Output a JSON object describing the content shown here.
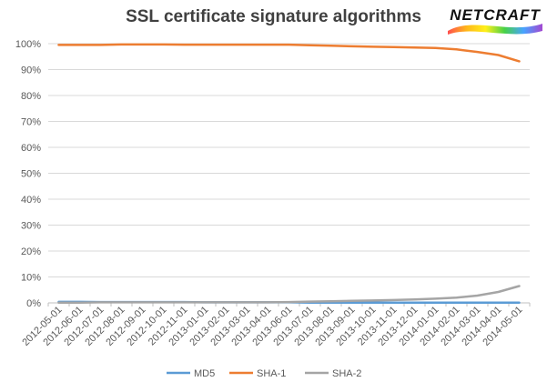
{
  "logo": {
    "text": "NETCRAFT"
  },
  "chart_data": {
    "type": "line",
    "title": "SSL certificate signature algorithms",
    "xlabel": "",
    "ylabel": "",
    "ylim": [
      0,
      100
    ],
    "y_ticks": [
      "0%",
      "10%",
      "20%",
      "30%",
      "40%",
      "50%",
      "60%",
      "70%",
      "80%",
      "90%",
      "100%"
    ],
    "grid": true,
    "legend_position": "bottom",
    "categories": [
      "2012-05-01",
      "2012-06-01",
      "2012-07-01",
      "2012-08-01",
      "2012-09-01",
      "2012-10-01",
      "2012-11-01",
      "2013-01-01",
      "2013-02-01",
      "2013-03-01",
      "2013-04-01",
      "2013-06-01",
      "2013-07-01",
      "2013-08-01",
      "2013-09-01",
      "2013-10-01",
      "2013-11-01",
      "2013-12-01",
      "2014-01-01",
      "2014-02-01",
      "2014-03-01",
      "2014-04-01",
      "2014-05-01"
    ],
    "series": [
      {
        "name": "MD5",
        "color": "#5b9bd5",
        "values": [
          0.4,
          0.4,
          0.3,
          0.3,
          0.3,
          0.3,
          0.3,
          0.2,
          0.2,
          0.2,
          0.2,
          0.2,
          0.1,
          0.1,
          0.1,
          0.1,
          0.1,
          0.1,
          0.1,
          0.1,
          0.1,
          0.1,
          0.1
        ]
      },
      {
        "name": "SHA-1",
        "color": "#ed7d31",
        "values": [
          99.5,
          99.5,
          99.5,
          99.7,
          99.7,
          99.7,
          99.6,
          99.6,
          99.6,
          99.6,
          99.6,
          99.6,
          99.4,
          99.2,
          99.0,
          98.8,
          98.7,
          98.5,
          98.3,
          97.8,
          96.8,
          95.6,
          93.2
        ]
      },
      {
        "name": "SHA-2",
        "color": "#a5a5a5",
        "values": [
          0.1,
          0.1,
          0.2,
          0.2,
          0.2,
          0.2,
          0.2,
          0.2,
          0.2,
          0.2,
          0.2,
          0.3,
          0.5,
          0.6,
          0.8,
          0.9,
          1.1,
          1.3,
          1.6,
          2.0,
          2.8,
          4.2,
          6.5
        ]
      }
    ]
  }
}
